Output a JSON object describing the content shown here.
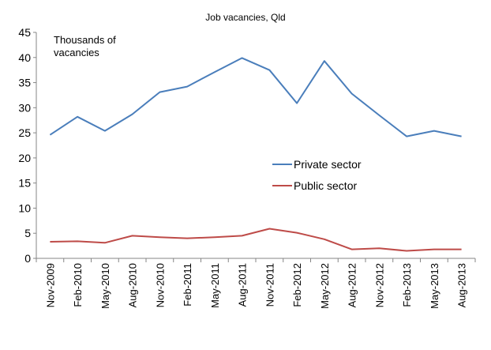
{
  "chart_data": {
    "type": "line",
    "title": "Job vacancies, Qld",
    "ylabel": "Thousands of vacancies",
    "ylabel_lines": [
      "Thousands of",
      "vacancies"
    ],
    "xlabel": "",
    "ylim": [
      0,
      45
    ],
    "yticks": [
      0,
      5,
      10,
      15,
      20,
      25,
      30,
      35,
      40,
      45
    ],
    "grid": false,
    "legend_position": "center-right",
    "categories": [
      "Nov-2009",
      "Feb-2010",
      "May-2010",
      "Aug-2010",
      "Nov-2010",
      "Feb-2011",
      "May-2011",
      "Aug-2011",
      "Nov-2011",
      "Feb-2012",
      "May-2012",
      "Aug-2012",
      "Nov-2012",
      "Feb-2013",
      "May-2013",
      "Aug-2013"
    ],
    "series": [
      {
        "name": "Private sector",
        "color": "#4a7ebb",
        "values": [
          24.6,
          28.2,
          25.4,
          28.7,
          33.1,
          34.2,
          37.1,
          39.9,
          37.5,
          30.9,
          39.3,
          32.8,
          28.5,
          24.3,
          25.4,
          24.3
        ]
      },
      {
        "name": "Public sector",
        "color": "#be4b48",
        "values": [
          3.3,
          3.4,
          3.1,
          4.5,
          4.2,
          4.0,
          4.2,
          4.5,
          5.9,
          5.1,
          3.8,
          1.8,
          2.0,
          1.5,
          1.8,
          1.8
        ]
      }
    ]
  }
}
